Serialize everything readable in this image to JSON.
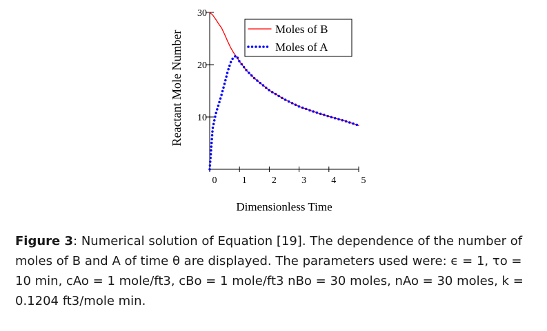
{
  "chart_data": {
    "type": "line",
    "ylabel": "Reactant Mole Number",
    "xlabel": "Dimensionless Time",
    "xlim": [
      0,
      5
    ],
    "ylim": [
      0,
      30
    ],
    "x_ticks": [
      0,
      1,
      2,
      3,
      4,
      5
    ],
    "y_ticks": [
      10,
      20,
      30
    ],
    "legend_position": "top-right",
    "colors": {
      "moles_b": "#ff0000",
      "moles_a": "#0000ff"
    },
    "series": [
      {
        "name": "Moles of B",
        "style": "solid",
        "x": [
          0,
          0.1,
          0.2,
          0.3,
          0.4,
          0.5,
          0.6,
          0.7,
          0.8,
          0.9,
          1.0,
          1.25,
          1.5,
          2.0,
          2.5,
          3.0,
          3.5,
          4.0,
          4.5,
          5.0
        ],
        "values": [
          30,
          29.5,
          28.7,
          27.8,
          27.0,
          25.8,
          24.5,
          23.3,
          22.3,
          21.5,
          20.6,
          18.8,
          17.4,
          15.1,
          13.4,
          12.0,
          11.0,
          10.1,
          9.3,
          8.4
        ]
      },
      {
        "name": "Moles of A",
        "style": "dotted",
        "x": [
          0,
          0.1,
          0.2,
          0.3,
          0.4,
          0.5,
          0.6,
          0.7,
          0.8,
          0.9,
          1.0,
          1.25,
          1.5,
          2.0,
          2.5,
          3.0,
          3.5,
          4.0,
          4.5,
          5.0
        ],
        "values": [
          0,
          7.8,
          10.5,
          12.4,
          14.3,
          16.4,
          18.6,
          20.4,
          21.5,
          21.7,
          20.6,
          18.8,
          17.4,
          15.1,
          13.4,
          12.0,
          11.0,
          10.1,
          9.3,
          8.4
        ]
      }
    ]
  },
  "caption": {
    "label": "Figure 3",
    "text": ": Numerical solution of Equation [19]. The dependence of the number of moles of B and A of time θ are displayed. The parameters used were: ϵ = 1, τo = 10 min, cAo = 1 mole/ft3, cBo = 1 mole/ft3 nBo = 30 moles, nAo = 30 moles, k = 0.1204 ft3/mole min."
  }
}
